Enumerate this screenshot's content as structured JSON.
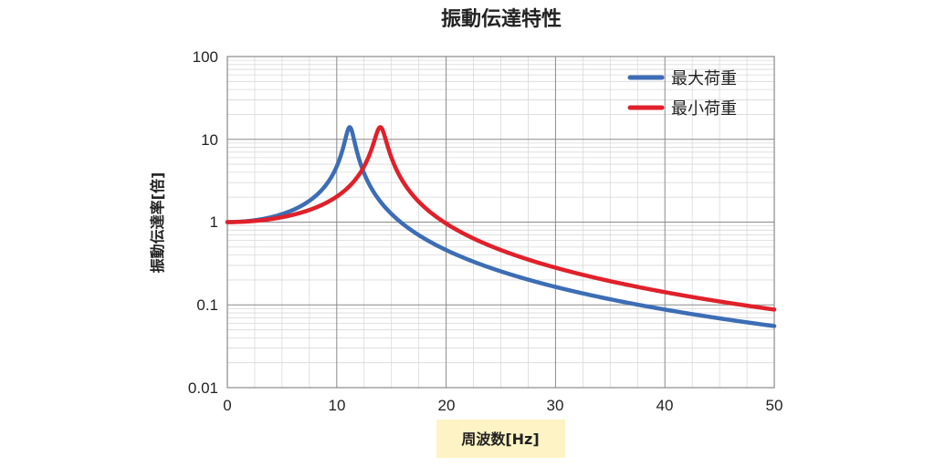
{
  "chart_data": {
    "type": "line",
    "title": "振動伝達特性",
    "xlabel": "周波数[Hz]",
    "ylabel": "振動伝達率[倍]",
    "xlim": [
      0,
      50
    ],
    "ylim": [
      0.01,
      100
    ],
    "yscale": "log",
    "grid": true,
    "legend_position": "top-right",
    "x_ticks": [
      "0",
      "10",
      "20",
      "30",
      "40",
      "50"
    ],
    "y_ticks": [
      "0.01",
      "0.1",
      "1",
      "10",
      "100"
    ],
    "series": [
      {
        "name": "最大荷重",
        "color": "#3d6db5",
        "natural_frequency": 11.2,
        "peak": 14,
        "x": [
          0,
          2,
          4,
          6,
          8,
          9,
          10,
          10.5,
          11,
          11.2,
          11.5,
          12,
          13,
          14,
          15,
          17,
          20,
          25,
          30,
          35,
          40,
          45,
          50
        ],
        "values": [
          1.0,
          1.03,
          1.15,
          1.4,
          2.04,
          2.82,
          4.93,
          8.1,
          14.0,
          14.0,
          10.0,
          4.48,
          2.07,
          1.29,
          0.92,
          0.58,
          0.46,
          0.26,
          0.165,
          0.117,
          0.085,
          0.068,
          0.054
        ]
      },
      {
        "name": "最小荷重",
        "color": "#e0202a",
        "natural_frequency": 14.0,
        "peak": 14,
        "x": [
          0,
          2,
          4,
          6,
          8,
          10,
          11,
          12,
          13,
          13.5,
          14,
          14.5,
          15,
          16,
          17,
          18,
          20,
          25,
          30,
          35,
          40,
          45,
          50
        ],
        "values": [
          1.0,
          1.02,
          1.09,
          1.22,
          1.48,
          2.03,
          2.6,
          3.7,
          6.5,
          9.3,
          14.0,
          10.0,
          6.2,
          3.5,
          2.33,
          1.61,
          0.96,
          0.42,
          0.26,
          0.187,
          0.14,
          0.11,
          0.086
        ]
      }
    ]
  }
}
